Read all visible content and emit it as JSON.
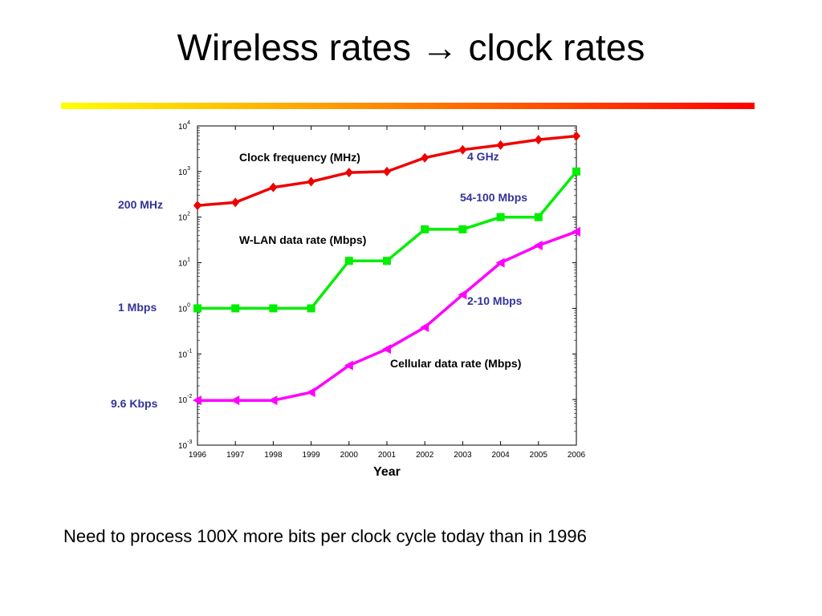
{
  "slide": {
    "title": "Wireless rates → clock rates",
    "footer": "Need to process 100X more bits per clock cycle today than in 1996"
  },
  "colors": {
    "bar_start": "#ffff00",
    "bar_end": "#ff0000"
  },
  "chart_data": {
    "type": "line",
    "xlabel": "Year",
    "ylabel": "",
    "y_scale": "log",
    "ylim_exponents": [
      -3,
      4
    ],
    "xlim": [
      1996,
      2006
    ],
    "grid": false,
    "x": [
      1996,
      1997,
      1998,
      1999,
      2000,
      2001,
      2002,
      2003,
      2004,
      2005,
      2006
    ],
    "x_tick_labels": [
      "1996",
      "1997",
      "1998",
      "1999",
      "2000",
      "2001",
      "2002",
      "2003",
      "2004",
      "2005",
      "2006"
    ],
    "y_tick_labels": [
      {
        "base": "10",
        "exp": "4"
      },
      {
        "base": "10",
        "exp": "3"
      },
      {
        "base": "10",
        "exp": "2"
      },
      {
        "base": "10",
        "exp": "1"
      },
      {
        "base": "10",
        "exp": "0"
      },
      {
        "base": "10",
        "exp": "-1"
      },
      {
        "base": "10",
        "exp": "-2"
      },
      {
        "base": "10",
        "exp": "-3"
      }
    ],
    "series": [
      {
        "key": "clock",
        "color": "#ee0000",
        "marker": "diamond",
        "values": [
          180,
          210,
          450,
          600,
          950,
          1000,
          2000,
          3000,
          3800,
          5000,
          6000
        ]
      },
      {
        "key": "wlan",
        "color": "#00ee00",
        "marker": "square",
        "values": [
          1,
          1,
          1,
          1,
          11,
          11,
          54,
          54,
          100,
          100,
          1000
        ]
      },
      {
        "key": "cellular",
        "color": "#ff00ff",
        "marker": "triangle-left",
        "values": [
          0.0096,
          0.0096,
          0.0096,
          0.0144,
          0.056,
          0.128,
          0.384,
          2,
          10,
          24,
          48
        ]
      }
    ],
    "annotations": {
      "clock_series": "Clock frequency (MHz)",
      "wlan_series": "W-LAN data rate (Mbps)",
      "cellular_series": "Cellular data rate (Mbps)",
      "clock_end": "4 GHz",
      "wlan_end": "54-100 Mbps",
      "cellular_end": "2-10 Mbps",
      "clock_start": "200 MHz",
      "wlan_start": "1 Mbps",
      "cellular_start": "9.6 Kbps"
    },
    "annotation_color": "#333399"
  }
}
